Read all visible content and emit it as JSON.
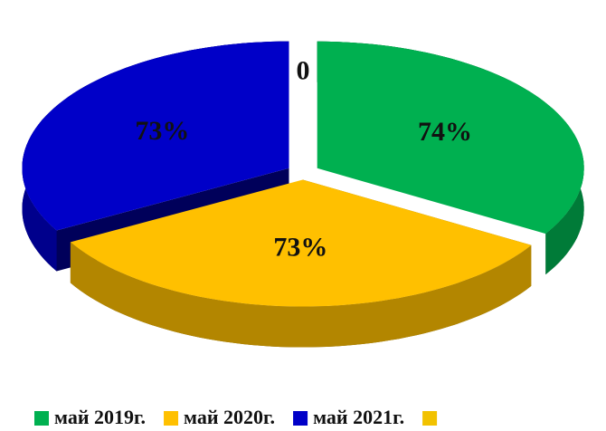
{
  "chart_data": {
    "type": "pie",
    "categories": [
      "май 2019г.",
      "май 2020г.",
      "май 2021г.",
      null
    ],
    "values": [
      74,
      73,
      73,
      0
    ],
    "value_labels": [
      "74%",
      "73%",
      "73%",
      "0"
    ],
    "colors": [
      "#00b050",
      "#ffc000",
      "#0000c8",
      "#f2c200"
    ],
    "legend": "bottom"
  }
}
